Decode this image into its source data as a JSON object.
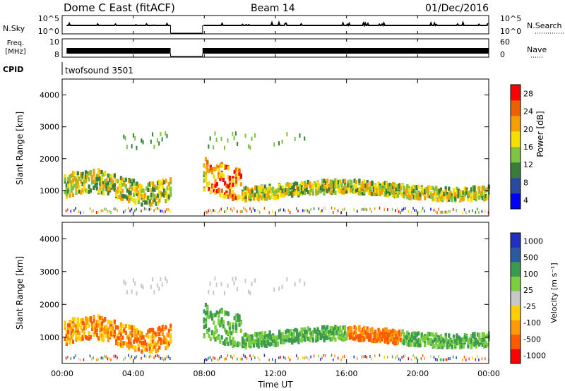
{
  "header": {
    "title": "Dome C East (fitACF)",
    "beam": "Beam 14",
    "date": "01/Dec/2016"
  },
  "top_panels": {
    "nsky_label": "N.Sky",
    "nsearch_label": "N.Search",
    "nsky_ticks": [
      "10^5",
      "10^0"
    ],
    "nsearch_ticks": [
      "10^5",
      "10^0"
    ],
    "freq_label_1": "Freq.",
    "freq_label_2": "[MHz]",
    "freq_ticks": [
      "10",
      "8"
    ],
    "nave_label": "Nave",
    "nave_ticks": [
      "60",
      "0"
    ],
    "cpid_label": "CPID",
    "cpid_value": "twofsound 3501"
  },
  "colors": {
    "power_scale": [
      "#0000ff",
      "#2a4aa0",
      "#3a7d3a",
      "#7cc442",
      "#f5e000",
      "#f5a000",
      "#f06000",
      "#ff0000"
    ],
    "velocity_scale": [
      "#ff0000",
      "#ff5a00",
      "#ff9a00",
      "#ffd000",
      "#c8c8c8",
      "#7cd040",
      "#3c9a50",
      "#2a5aa0",
      "#2030c0"
    ]
  },
  "chart_data": [
    {
      "type": "heatmap",
      "name": "power-panel",
      "ylabel": "Slant Range [km]",
      "yticks": [
        "4000",
        "3000",
        "2000",
        "1000"
      ],
      "ylim": [
        200,
        4500
      ],
      "xlim": [
        0,
        24
      ],
      "colorbar_label": "Power [dB]",
      "colorbar_ticks": [
        "28",
        "24",
        "20",
        "16",
        "12",
        "8",
        "4"
      ],
      "colorbar_range": [
        0,
        32
      ],
      "data_gap_hours": [
        6.1,
        7.9
      ]
    },
    {
      "type": "heatmap",
      "name": "velocity-panel",
      "ylabel": "Slant Range [km]",
      "yticks": [
        "4000",
        "3000",
        "2000",
        "1000"
      ],
      "ylim": [
        200,
        4500
      ],
      "xlim": [
        0,
        24
      ],
      "colorbar_label": "Velocity [m s⁻¹]",
      "colorbar_ticks": [
        "1000",
        "500",
        "100",
        "25",
        "-25",
        "-100",
        "-500",
        "-1000"
      ],
      "data_gap_hours": [
        6.1,
        7.9
      ]
    }
  ],
  "xaxis": {
    "ticks": [
      "00:00",
      "04:00",
      "08:00",
      "12:00",
      "16:00",
      "20:00",
      "00:00"
    ],
    "label": "Time UT"
  }
}
